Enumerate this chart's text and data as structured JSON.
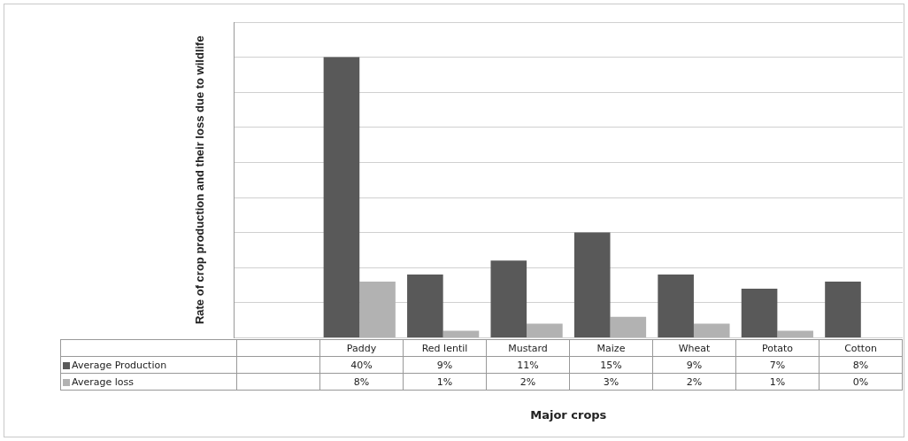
{
  "chart_data": {
    "type": "bar",
    "ylabel": "Rate of crop production and their loss due to wildlife",
    "xlabel": "Major crops",
    "categories": [
      null,
      "Paddy",
      "Red lentil",
      "Mustard",
      "Maize",
      "Wheat",
      "Potato",
      "Cotton"
    ],
    "series": [
      {
        "name": "Average Production",
        "color": "#595959",
        "values": [
          null,
          40,
          9,
          11,
          15,
          9,
          7,
          8
        ],
        "value_labels": [
          null,
          "40%",
          "9%",
          "11%",
          "15%",
          "9%",
          "7%",
          "8%"
        ]
      },
      {
        "name": "Average loss",
        "color": "#b2b2b2",
        "values": [
          null,
          8,
          1,
          2,
          3,
          2,
          1,
          0
        ],
        "value_labels": [
          null,
          "8%",
          "1%",
          "2%",
          "3%",
          "2%",
          "1%",
          "0%"
        ]
      }
    ],
    "ylim": [
      0,
      45
    ],
    "grid": "y",
    "legend": "bottom",
    "tick_labels": false
  }
}
